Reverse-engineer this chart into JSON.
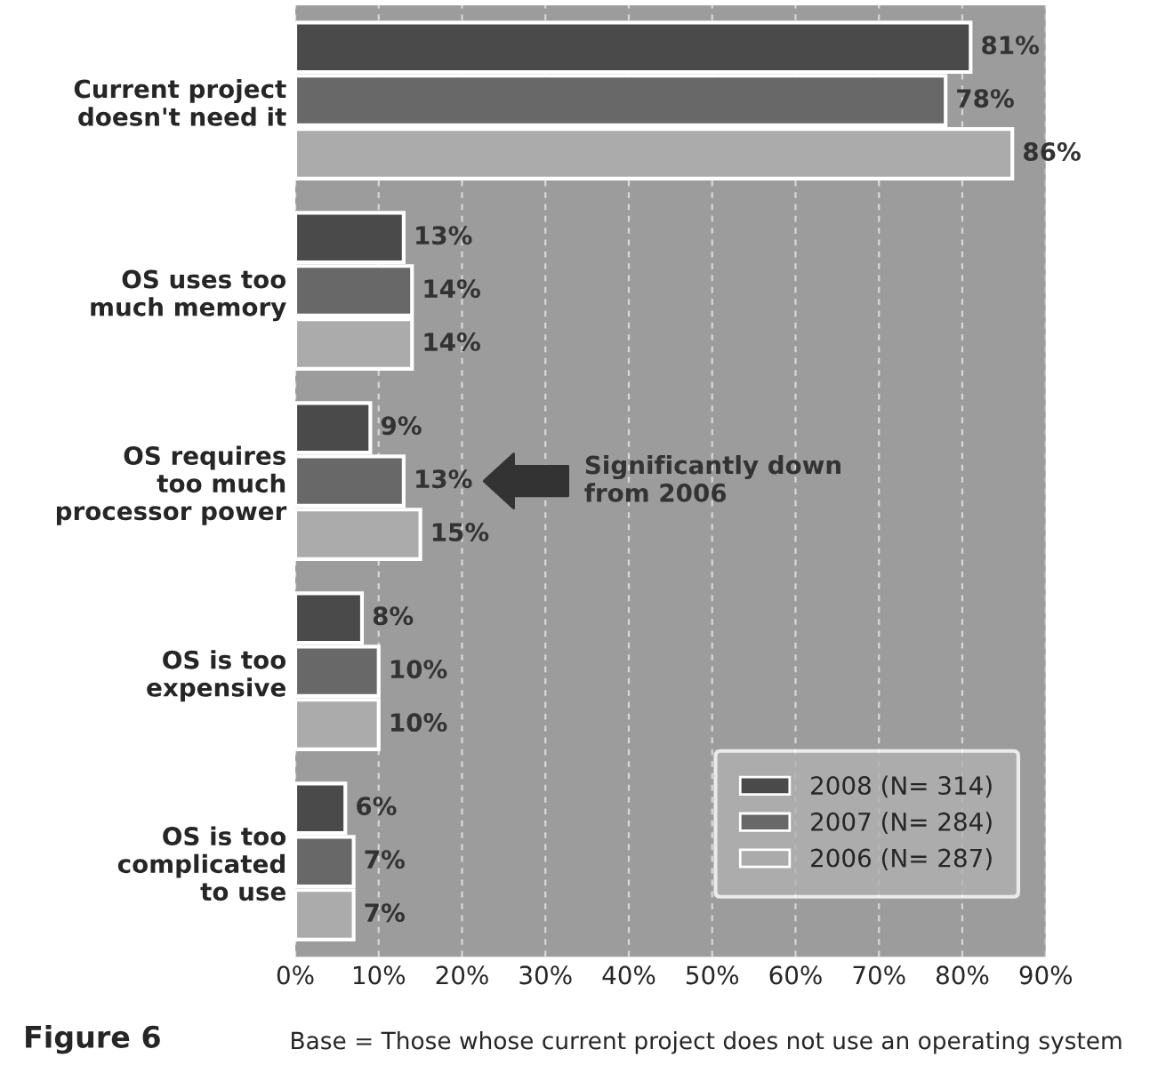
{
  "chart_data": {
    "type": "bar",
    "orientation": "horizontal",
    "categories": [
      "Current project\ndoesn't need it",
      "OS uses too\nmuch memory",
      "OS requires\ntoo much\nprocessor power",
      "OS is too\nexpensive",
      "OS is too\ncomplicated\nto use"
    ],
    "series": [
      {
        "name": "2008 (N= 314)",
        "color": "#4a4a4a",
        "values": [
          81,
          13,
          9,
          8,
          6
        ],
        "value_labels": [
          "81%",
          "13%",
          "9%",
          "8%",
          "6%"
        ]
      },
      {
        "name": "2007 (N= 284)",
        "color": "#686868",
        "values": [
          78,
          14,
          13,
          10,
          7
        ],
        "value_labels": [
          "78%",
          "14%",
          "13%",
          "10%",
          "7%"
        ]
      },
      {
        "name": "2006 (N= 287)",
        "color": "#ababab",
        "values": [
          86,
          14,
          15,
          10,
          7
        ],
        "value_labels": [
          "86%",
          "14%",
          "15%",
          "10%",
          "7%"
        ]
      }
    ],
    "xlim": [
      0,
      90
    ],
    "xticks": [
      {
        "value": 0,
        "label": "0%"
      },
      {
        "value": 10,
        "label": "10%"
      },
      {
        "value": 20,
        "label": "20%"
      },
      {
        "value": 30,
        "label": "30%"
      },
      {
        "value": 40,
        "label": "40%"
      },
      {
        "value": 50,
        "label": "50%"
      },
      {
        "value": 60,
        "label": "60%"
      },
      {
        "value": 70,
        "label": "70%"
      },
      {
        "value": 80,
        "label": "80%"
      },
      {
        "value": 90,
        "label": "90%"
      }
    ],
    "grid": "x",
    "legend": "bottom right",
    "annotations": [
      "Significantly down\nfrom 2006",
      "Figure 6",
      "Base = Those whose current project does not use an operating system"
    ]
  }
}
